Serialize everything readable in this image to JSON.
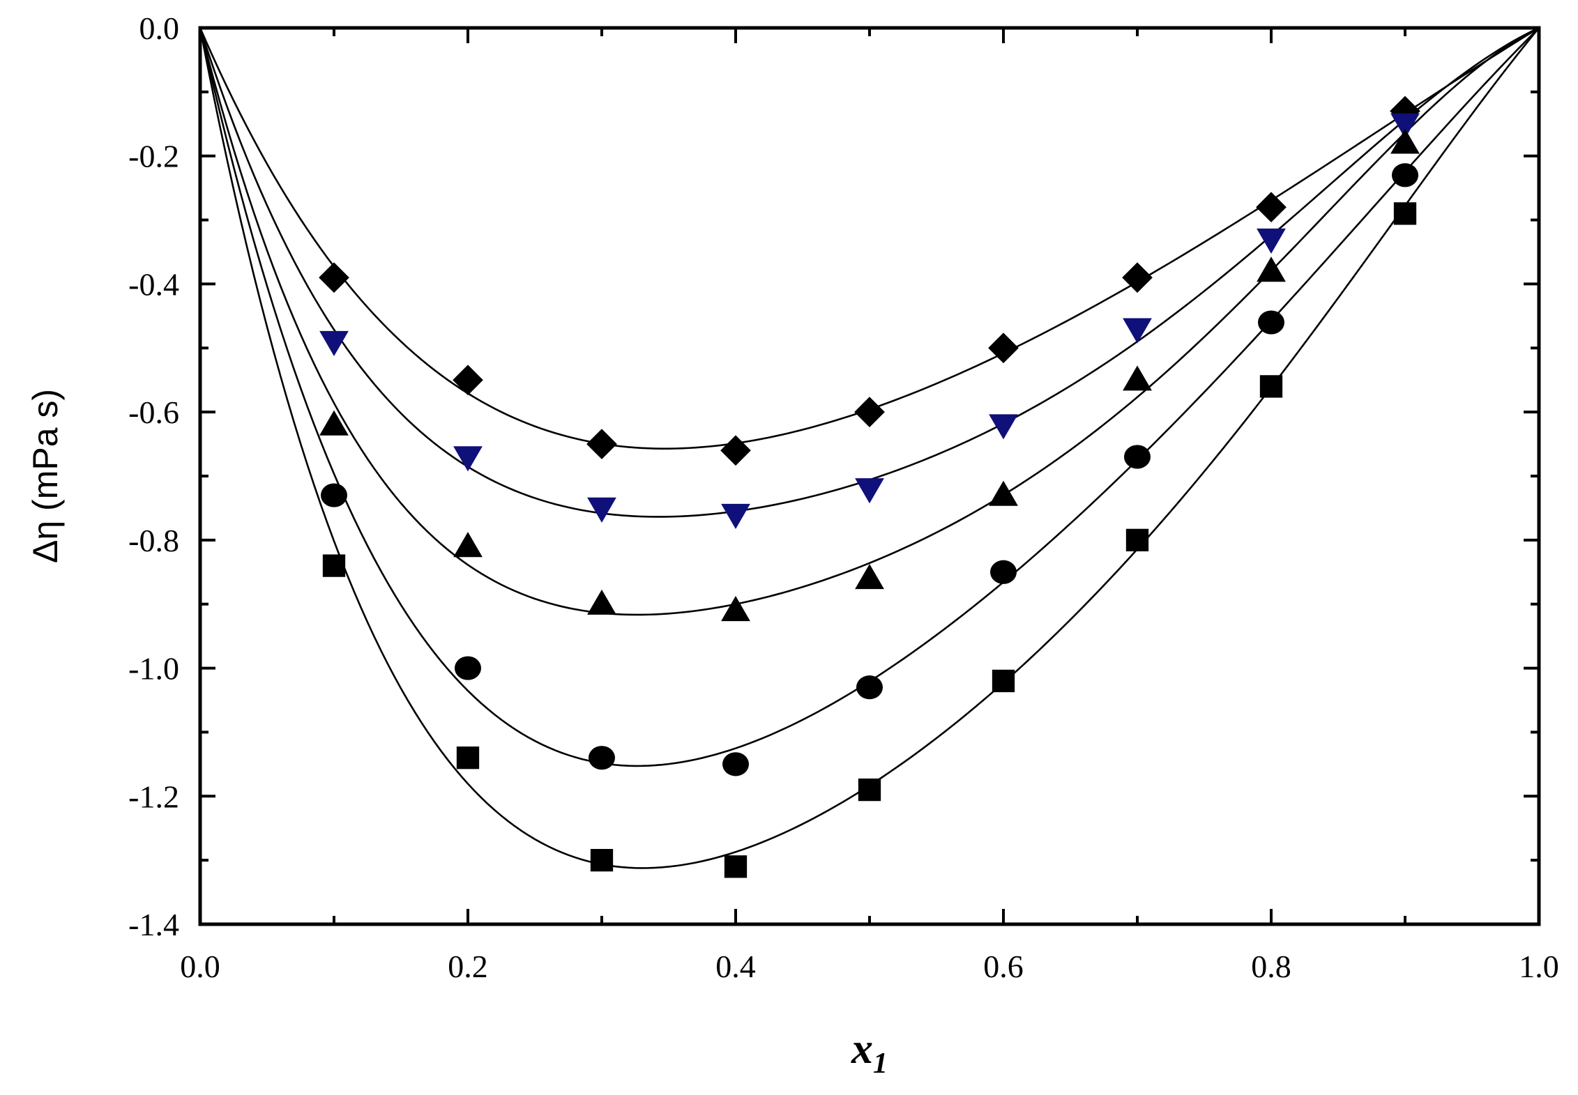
{
  "chart_data": {
    "type": "scatter",
    "xlabel_main": "x",
    "xlabel_sub": "1",
    "ylabel": "Δη (mPa s)",
    "xlim": [
      0.0,
      1.0
    ],
    "ylim": [
      -1.4,
      0.0
    ],
    "x_ticks": [
      "0.0",
      "0.2",
      "0.4",
      "0.6",
      "0.8",
      "1.0"
    ],
    "y_ticks": [
      "0.0",
      "-0.2",
      "-0.4",
      "-0.6",
      "-0.8",
      "-1.0",
      "-1.2",
      "-1.4"
    ],
    "grid": false,
    "legend": "none",
    "fit_curves": true,
    "series": [
      {
        "marker": "diamond",
        "color": "#000000",
        "x": [
          0.1,
          0.2,
          0.3,
          0.4,
          0.5,
          0.6,
          0.7,
          0.8,
          0.9
        ],
        "y": [
          -0.39,
          -0.55,
          -0.65,
          -0.66,
          -0.6,
          -0.5,
          -0.39,
          -0.28,
          -0.13
        ]
      },
      {
        "marker": "triangle-down",
        "color": "#10107a",
        "x": [
          0.1,
          0.2,
          0.3,
          0.4,
          0.5,
          0.6,
          0.7,
          0.8,
          0.9
        ],
        "y": [
          -0.49,
          -0.67,
          -0.75,
          -0.76,
          -0.72,
          -0.62,
          -0.47,
          -0.33,
          -0.15
        ]
      },
      {
        "marker": "triangle-up",
        "color": "#000000",
        "x": [
          0.1,
          0.2,
          0.3,
          0.4,
          0.5,
          0.6,
          0.7,
          0.8,
          0.9
        ],
        "y": [
          -0.62,
          -0.81,
          -0.9,
          -0.91,
          -0.86,
          -0.73,
          -0.55,
          -0.38,
          -0.18
        ]
      },
      {
        "marker": "circle",
        "color": "#000000",
        "x": [
          0.1,
          0.2,
          0.3,
          0.4,
          0.5,
          0.6,
          0.7,
          0.8,
          0.9
        ],
        "y": [
          -0.73,
          -1.0,
          -1.14,
          -1.15,
          -1.03,
          -0.85,
          -0.67,
          -0.46,
          -0.23
        ]
      },
      {
        "marker": "square",
        "color": "#000000",
        "x": [
          0.1,
          0.2,
          0.3,
          0.4,
          0.5,
          0.6,
          0.7,
          0.8,
          0.9
        ],
        "y": [
          -0.84,
          -1.14,
          -1.3,
          -1.31,
          -1.19,
          -1.02,
          -0.8,
          -0.56,
          -0.29
        ]
      }
    ]
  }
}
